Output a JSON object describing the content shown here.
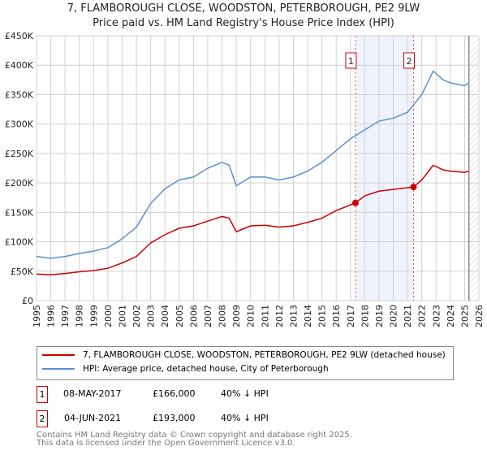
{
  "chart_data": {
    "type": "line",
    "title": "7, FLAMBOROUGH CLOSE, WOODSTON, PETERBOROUGH, PE2 9LW",
    "subtitle": "Price paid vs. HM Land Registry's House Price Index (HPI)",
    "xlim": [
      1995,
      2026
    ],
    "ylim": [
      0,
      450000
    ],
    "yticks": [
      {
        "v": 0,
        "l": "£0"
      },
      {
        "v": 50000,
        "l": "£50K"
      },
      {
        "v": 100000,
        "l": "£100K"
      },
      {
        "v": 150000,
        "l": "£150K"
      },
      {
        "v": 200000,
        "l": "£200K"
      },
      {
        "v": 250000,
        "l": "£250K"
      },
      {
        "v": 300000,
        "l": "£300K"
      },
      {
        "v": 350000,
        "l": "£350K"
      },
      {
        "v": 400000,
        "l": "£400K"
      },
      {
        "v": 450000,
        "l": "£450K"
      }
    ],
    "xticks": [
      1995,
      1996,
      1997,
      1998,
      1999,
      2000,
      2001,
      2002,
      2003,
      2004,
      2005,
      2006,
      2007,
      2008,
      2009,
      2010,
      2011,
      2012,
      2013,
      2014,
      2015,
      2016,
      2017,
      2018,
      2019,
      2020,
      2021,
      2022,
      2023,
      2024,
      2025,
      2026
    ],
    "grid": true,
    "data_end": 2025.3,
    "series": [
      {
        "name": "7, FLAMBOROUGH CLOSE, WOODSTON, PETERBOROUGH, PE2 9LW (detached house)",
        "color": "#cc0000",
        "x": [
          1995,
          1996,
          1997,
          1998,
          1999,
          2000,
          2001,
          2002,
          2003,
          2004,
          2005,
          2006,
          2007,
          2008,
          2008.5,
          2009,
          2010,
          2011,
          2012,
          2013,
          2014,
          2015,
          2016,
          2017.35,
          2018,
          2019,
          2020,
          2021.42,
          2022,
          2022.8,
          2023.5,
          2024,
          2025,
          2025.3
        ],
        "y": [
          45000,
          44000,
          46000,
          49000,
          51000,
          55000,
          64000,
          75000,
          98000,
          112000,
          123000,
          127000,
          135000,
          143000,
          140000,
          117000,
          127000,
          128000,
          125000,
          127000,
          133000,
          140000,
          153000,
          166000,
          178000,
          186000,
          189000,
          193000,
          205000,
          230000,
          222000,
          220000,
          218000,
          220000
        ]
      },
      {
        "name": "HPI: Average price, detached house, City of Peterborough",
        "color": "#5b8fd4",
        "x": [
          1995,
          1996,
          1997,
          1998,
          1999,
          2000,
          2001,
          2002,
          2003,
          2004,
          2005,
          2006,
          2007,
          2008,
          2008.5,
          2009,
          2010,
          2011,
          2012,
          2013,
          2014,
          2015,
          2016,
          2017,
          2018,
          2019,
          2020,
          2021,
          2022,
          2022.8,
          2023.5,
          2024,
          2025,
          2025.3
        ],
        "y": [
          75000,
          72000,
          75000,
          80000,
          84000,
          90000,
          105000,
          125000,
          165000,
          190000,
          205000,
          210000,
          225000,
          235000,
          230000,
          195000,
          210000,
          210000,
          205000,
          210000,
          220000,
          235000,
          255000,
          275000,
          290000,
          305000,
          310000,
          320000,
          350000,
          390000,
          375000,
          370000,
          365000,
          370000
        ]
      }
    ],
    "sales": [
      {
        "label": "1",
        "x": 2017.35,
        "y": 166000,
        "date": "08-MAY-2017",
        "price": "£166,000",
        "hpi": "40% ↓ HPI"
      },
      {
        "label": "2",
        "x": 2021.42,
        "y": 193000,
        "date": "04-JUN-2021",
        "price": "£193,000",
        "hpi": "40% ↓ HPI"
      }
    ]
  },
  "footer": {
    "line1": "Contains HM Land Registry data © Crown copyright and database right 2025.",
    "line2": "This data is licensed under the Open Government Licence v3.0."
  }
}
